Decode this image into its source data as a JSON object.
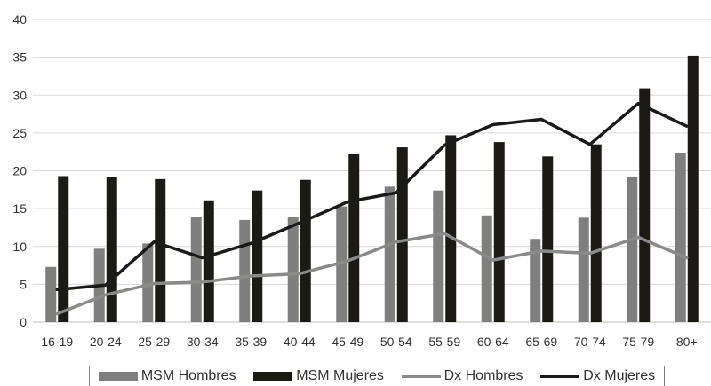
{
  "chart_data": {
    "type": "bar",
    "categories": [
      "16-19",
      "20-24",
      "25-29",
      "30-34",
      "35-39",
      "40-44",
      "45-49",
      "50-54",
      "55-59",
      "60-64",
      "65-69",
      "70-74",
      "75-79",
      "80+"
    ],
    "ylim": [
      0,
      40
    ],
    "yticks": [
      "0",
      "5",
      "10",
      "15",
      "20",
      "25",
      "30",
      "35",
      "40"
    ],
    "grid": true,
    "legend_position": "bottom",
    "series": [
      {
        "name": "MSM Hombres",
        "kind": "bar",
        "color": "#7f7f7f",
        "values": [
          7.3,
          9.7,
          10.4,
          13.9,
          13.5,
          13.9,
          15.3,
          17.9,
          17.4,
          14.1,
          11.0,
          13.8,
          19.2,
          22.4
        ]
      },
      {
        "name": "MSM Mujeres",
        "kind": "bar",
        "color": "#1c1b13",
        "values": [
          19.3,
          19.2,
          18.9,
          16.1,
          17.4,
          18.8,
          22.2,
          23.1,
          24.7,
          23.8,
          21.9,
          23.5,
          30.9,
          35.2
        ]
      },
      {
        "name": "Dx Hombres",
        "kind": "line",
        "color": "#8a8a8a",
        "values": [
          1.1,
          3.6,
          5.1,
          5.3,
          6.1,
          6.4,
          8.1,
          10.6,
          11.7,
          8.2,
          9.4,
          9.1,
          11.2,
          8.5
        ]
      },
      {
        "name": "Dx Mujeres",
        "kind": "line",
        "color": "#1a1a1a",
        "values": [
          4.3,
          4.9,
          10.6,
          8.5,
          10.4,
          13.1,
          15.9,
          17.1,
          23.4,
          26.1,
          26.8,
          23.5,
          28.9,
          25.9
        ]
      }
    ]
  }
}
